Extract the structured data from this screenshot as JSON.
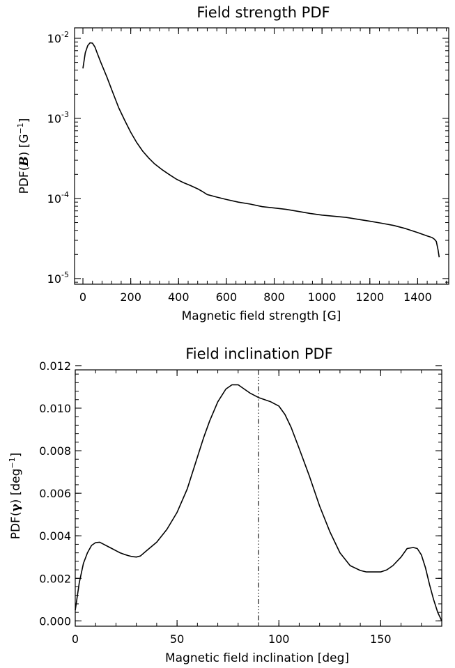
{
  "chart_data": [
    {
      "type": "line",
      "title": "Field strength PDF",
      "xlabel": "Magnetic field strength [G]",
      "ylabel": "PDF(B) [G⁻¹]",
      "ylabel_parts": {
        "pre": "PDF(",
        "sym": "B",
        "mid": ") [G",
        "sup": "−1",
        "post": "]"
      },
      "xlim": [
        -35,
        1530
      ],
      "ylim": [
        8.5e-06,
        0.0135
      ],
      "yscale": "log",
      "xticks": [
        0,
        200,
        400,
        600,
        800,
        1000,
        1200,
        1400
      ],
      "xtick_labels": [
        "0",
        "200",
        "400",
        "600",
        "800",
        "1000",
        "1200",
        "1400"
      ],
      "yticks": [
        1e-05,
        0.0001,
        0.001,
        0.01
      ],
      "ytick_labels": [
        {
          "base": "10",
          "exp": "-5"
        },
        {
          "base": "10",
          "exp": "-4"
        },
        {
          "base": "10",
          "exp": "-3"
        },
        {
          "base": "10",
          "exp": "-2"
        }
      ],
      "grid": false,
      "series": [
        {
          "x": [
            0,
            10,
            20,
            30,
            40,
            50,
            60,
            75,
            100,
            125,
            150,
            175,
            200,
            225,
            250,
            275,
            300,
            330,
            360,
            390,
            420,
            450,
            480,
            500,
            520,
            540,
            560,
            600,
            650,
            700,
            750,
            800,
            850,
            900,
            950,
            1000,
            1050,
            1100,
            1150,
            1200,
            1250,
            1300,
            1350,
            1400,
            1440,
            1460,
            1470,
            1478,
            1485,
            1490
          ],
          "y": [
            0.0042,
            0.0066,
            0.0081,
            0.0088,
            0.0087,
            0.0078,
            0.0065,
            0.005,
            0.0033,
            0.0021,
            0.00135,
            0.00094,
            0.00067,
            0.0005,
            0.00039,
            0.00032,
            0.00027,
            0.00023,
            0.0002,
            0.000175,
            0.000158,
            0.000145,
            0.000132,
            0.000122,
            0.000112,
            0.000108,
            0.000104,
            9.7e-05,
            9e-05,
            8.5e-05,
            7.9e-05,
            7.6e-05,
            7.3e-05,
            6.9e-05,
            6.5e-05,
            6.2e-05,
            6e-05,
            5.8e-05,
            5.5e-05,
            5.2e-05,
            4.9e-05,
            4.6e-05,
            4.2e-05,
            3.75e-05,
            3.4e-05,
            3.25e-05,
            3.1e-05,
            2.9e-05,
            2.3e-05,
            1.85e-05
          ]
        }
      ]
    },
    {
      "type": "line",
      "title": "Field inclination PDF",
      "xlabel": "Magnetic field inclination [deg]",
      "ylabel": "PDF(γ) [deg⁻¹]",
      "ylabel_parts": {
        "pre": "PDF(",
        "sym": "γ",
        "mid": ") [deg",
        "sup": "−1",
        "post": "]"
      },
      "xlim": [
        0,
        180
      ],
      "ylim": [
        -0.00025,
        0.0118
      ],
      "yscale": "linear",
      "xticks": [
        0,
        50,
        100,
        150
      ],
      "xtick_labels": [
        "0",
        "50",
        "100",
        "150"
      ],
      "yticks": [
        0,
        0.002,
        0.004,
        0.006,
        0.008,
        0.01,
        0.012
      ],
      "ytick_labels": [
        "0.000",
        "0.002",
        "0.004",
        "0.006",
        "0.008",
        "0.010",
        "0.012"
      ],
      "grid": false,
      "reference_line_x": 90,
      "series": [
        {
          "x": [
            0,
            2,
            4,
            6,
            8,
            10,
            12,
            14,
            16,
            18,
            20,
            22,
            24,
            26,
            28,
            30,
            32,
            35,
            40,
            45,
            50,
            55,
            60,
            63,
            66,
            70,
            74,
            77,
            80,
            83,
            86,
            90,
            93,
            96,
            100,
            103,
            106,
            110,
            115,
            120,
            125,
            130,
            135,
            140,
            143,
            146,
            150,
            153,
            156,
            160,
            163,
            166,
            168,
            170,
            172,
            174,
            176,
            178,
            180
          ],
          "y": [
            0.0005,
            0.0018,
            0.0027,
            0.0032,
            0.00355,
            0.00368,
            0.0037,
            0.0036,
            0.0035,
            0.0034,
            0.0033,
            0.0032,
            0.00313,
            0.00307,
            0.00302,
            0.003,
            0.00305,
            0.0033,
            0.0037,
            0.0043,
            0.0051,
            0.0062,
            0.0077,
            0.0086,
            0.0094,
            0.0103,
            0.0109,
            0.0111,
            0.0111,
            0.0109,
            0.0107,
            0.0105,
            0.0104,
            0.0103,
            0.0101,
            0.0097,
            0.0091,
            0.0081,
            0.0068,
            0.0054,
            0.0042,
            0.0032,
            0.0026,
            0.00237,
            0.0023,
            0.0023,
            0.0023,
            0.0024,
            0.0026,
            0.003,
            0.0034,
            0.00345,
            0.0034,
            0.0031,
            0.0025,
            0.0017,
            0.001,
            0.0004,
            0
          ]
        }
      ]
    }
  ]
}
